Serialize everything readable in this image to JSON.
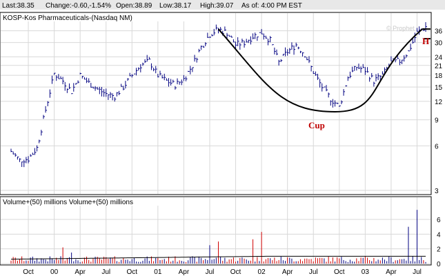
{
  "quote": {
    "last": "Last:38.35",
    "change": "Change:-0.60,-1.54%",
    "open": "Open:38.89",
    "low": "Low:38.17",
    "high": "High:39.07",
    "asof": "As of: 4:00 PM EST"
  },
  "colors": {
    "change": "#c00000",
    "bar": "#000080",
    "vol_up": "#000080",
    "vol_down": "#d00000",
    "grid": "#d8d8d8",
    "header_bg": "#e8e8e8",
    "annotation": "#c00000"
  },
  "price_panel": {
    "title": "KOSP-Kos Pharmaceuticals-(Nasdaq NM)",
    "watermark": "© Prophet"
  },
  "volume_panel": {
    "title": "Volume+(50) millions    Volume+(50) millions"
  },
  "annotations": {
    "cup": "Cup",
    "handle": "H"
  },
  "chart_data": [
    {
      "type": "bar",
      "subtype": "ohlc",
      "title": "KOSP-Kos Pharmaceuticals-(Nasdaq NM)",
      "y_scale": "log",
      "y_ticks": [
        3,
        6,
        9,
        12,
        15,
        18,
        21,
        24,
        30,
        36
      ],
      "ylim": [
        2.9,
        39.5
      ],
      "x_tick_labels": [
        "Oct",
        "00",
        "Apr",
        "Jul",
        "Oct",
        "01",
        "Apr",
        "Jul",
        "Oct",
        "02",
        "Apr",
        "Jul",
        "Oct",
        "03",
        "Apr",
        "Jul"
      ],
      "x_tick_dates": [
        "1999-10",
        "2000-01",
        "2000-04",
        "2000-07",
        "2000-10",
        "2001-01",
        "2001-04",
        "2001-07",
        "2001-10",
        "2002-01",
        "2002-04",
        "2002-07",
        "2002-10",
        "2003-01",
        "2003-04",
        "2003-07"
      ],
      "price_path": [
        [
          "1999-08",
          5.5
        ],
        [
          "1999-09",
          4.8
        ],
        [
          "1999-10",
          4.9
        ],
        [
          "1999-11",
          5.8
        ],
        [
          "1999-12",
          10.5
        ],
        [
          "2000-01",
          18.5
        ],
        [
          "2000-02",
          16.5
        ],
        [
          "2000-03",
          14.0
        ],
        [
          "2000-04",
          18.0
        ],
        [
          "2000-05",
          16.0
        ],
        [
          "2000-06",
          14.5
        ],
        [
          "2000-07",
          13.5
        ],
        [
          "2000-08",
          13.0
        ],
        [
          "2000-09",
          15.0
        ],
        [
          "2000-10",
          18.0
        ],
        [
          "2000-11",
          21.0
        ],
        [
          "2000-12",
          22.5
        ],
        [
          "2001-01",
          18.0
        ],
        [
          "2001-02",
          16.5
        ],
        [
          "2001-03",
          15.5
        ],
        [
          "2001-04",
          17.0
        ],
        [
          "2001-05",
          21.0
        ],
        [
          "2001-06",
          28.0
        ],
        [
          "2001-07",
          34.0
        ],
        [
          "2001-08",
          37.0
        ],
        [
          "2001-09",
          35.0
        ],
        [
          "2001-10",
          29.0
        ],
        [
          "2001-11",
          30.0
        ],
        [
          "2001-12",
          33.0
        ],
        [
          "2002-01",
          35.0
        ],
        [
          "2002-02",
          31.0
        ],
        [
          "2002-03",
          22.0
        ],
        [
          "2002-04",
          26.0
        ],
        [
          "2002-05",
          29.0
        ],
        [
          "2002-06",
          25.0
        ],
        [
          "2002-07",
          19.0
        ],
        [
          "2002-08",
          15.0
        ],
        [
          "2002-09",
          12.5
        ],
        [
          "2002-10",
          11.0
        ],
        [
          "2002-11",
          17.5
        ],
        [
          "2002-12",
          20.5
        ],
        [
          "2003-01",
          19.5
        ],
        [
          "2003-02",
          16.5
        ],
        [
          "2003-03",
          18.0
        ],
        [
          "2003-04",
          22.0
        ],
        [
          "2003-05",
          22.5
        ],
        [
          "2003-06",
          26.0
        ],
        [
          "2003-07",
          35.0
        ],
        [
          "2003-08",
          38.35
        ]
      ],
      "last_price": 38.35
    },
    {
      "type": "bar",
      "title": "Volume+(50) millions",
      "y_ticks": [
        0,
        2,
        4,
        6
      ],
      "ylim": [
        0,
        7.5
      ],
      "baseline_volume": 0.5,
      "spikes": [
        [
          "2000-02",
          2.2,
          "down"
        ],
        [
          "2000-03",
          1.5,
          "up"
        ],
        [
          "2001-07",
          2.5,
          "up"
        ],
        [
          "2001-08",
          3.0,
          "down"
        ],
        [
          "2001-12",
          3.3,
          "down"
        ],
        [
          "2002-01",
          4.3,
          "down"
        ],
        [
          "2003-06",
          5.0,
          "up"
        ],
        [
          "2003-07",
          7.3,
          "up"
        ]
      ],
      "moving_average_level": 1.0
    }
  ]
}
